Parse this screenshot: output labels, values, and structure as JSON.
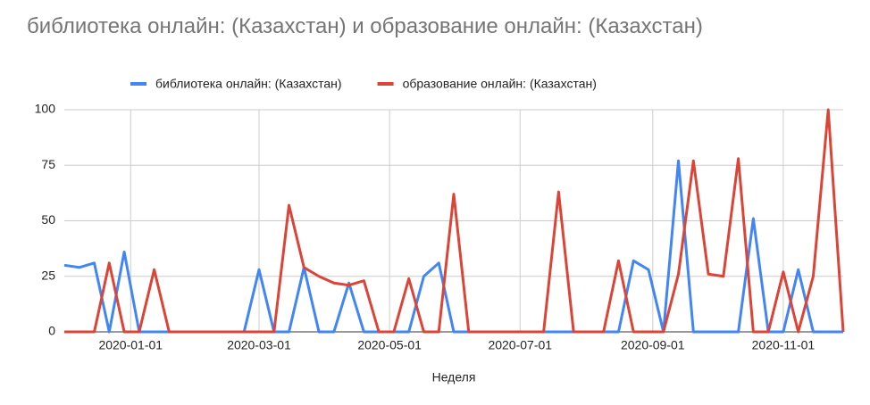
{
  "chart_data": {
    "type": "line",
    "title": "библиотека онлайн: (Казахстан) и образование онлайн: (Казахстан)",
    "x_label": "Неделя",
    "x": [
      "2019-12-01",
      "2019-12-08",
      "2019-12-15",
      "2019-12-22",
      "2019-12-29",
      "2020-01-05",
      "2020-01-12",
      "2020-01-19",
      "2020-01-26",
      "2020-02-02",
      "2020-02-09",
      "2020-02-16",
      "2020-02-23",
      "2020-03-01",
      "2020-03-08",
      "2020-03-15",
      "2020-03-22",
      "2020-03-29",
      "2020-04-05",
      "2020-04-12",
      "2020-04-19",
      "2020-04-26",
      "2020-05-03",
      "2020-05-10",
      "2020-05-17",
      "2020-05-24",
      "2020-05-31",
      "2020-06-07",
      "2020-06-14",
      "2020-06-21",
      "2020-06-28",
      "2020-07-05",
      "2020-07-12",
      "2020-07-19",
      "2020-07-26",
      "2020-08-02",
      "2020-08-09",
      "2020-08-16",
      "2020-08-23",
      "2020-08-30",
      "2020-09-06",
      "2020-09-13",
      "2020-09-20",
      "2020-09-27",
      "2020-10-04",
      "2020-10-11",
      "2020-10-18",
      "2020-10-25",
      "2020-11-01",
      "2020-11-08",
      "2020-11-15",
      "2020-11-22",
      "2020-11-29"
    ],
    "series": [
      {
        "name": "библиотека онлайн: (Казахстан)",
        "color": "#4285f4",
        "values": [
          30,
          29,
          31,
          0,
          36,
          0,
          0,
          0,
          0,
          0,
          0,
          0,
          0,
          28,
          0,
          0,
          29,
          0,
          0,
          22,
          0,
          0,
          0,
          0,
          25,
          31,
          0,
          0,
          0,
          0,
          0,
          0,
          0,
          0,
          0,
          0,
          0,
          0,
          32,
          28,
          0,
          77,
          0,
          0,
          0,
          0,
          51,
          0,
          0,
          28,
          0,
          0,
          0
        ]
      },
      {
        "name": "образование онлайн: (Казахстан)",
        "color": "#db4437",
        "values": [
          0,
          0,
          0,
          31,
          0,
          0,
          28,
          0,
          0,
          0,
          0,
          0,
          0,
          0,
          0,
          57,
          29,
          25,
          22,
          21,
          23,
          0,
          0,
          24,
          0,
          0,
          62,
          0,
          0,
          0,
          0,
          0,
          0,
          63,
          0,
          0,
          0,
          32,
          0,
          0,
          0,
          26,
          77,
          26,
          25,
          78,
          0,
          0,
          27,
          0,
          25,
          100,
          0
        ]
      }
    ],
    "xlim": [
      "2019-12-01",
      "2020-11-29"
    ],
    "xticks": [
      "2020-01-01",
      "2020-03-01",
      "2020-05-01",
      "2020-07-01",
      "2020-09-01",
      "2020-11-01"
    ],
    "ylim": [
      0,
      100
    ],
    "yticks": [
      0,
      25,
      50,
      75,
      100
    ],
    "grid": true,
    "legend": "top"
  }
}
